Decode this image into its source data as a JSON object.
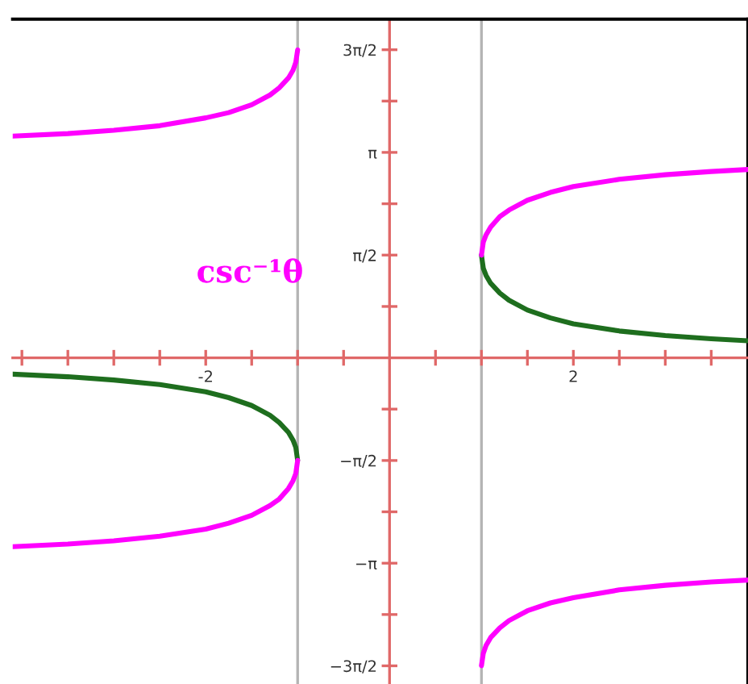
{
  "chart_data": {
    "type": "line",
    "marker": "none",
    "line_style": "solid",
    "grid": false,
    "legend": false,
    "xlim": [
      -4.1,
      3.9
    ],
    "ylim": [
      -4.99,
      5.18
    ],
    "xticks": [
      {
        "value": -4,
        "label": null
      },
      {
        "value": -3.5,
        "label": null
      },
      {
        "value": -3,
        "label": null
      },
      {
        "value": -2.5,
        "label": null
      },
      {
        "value": -2,
        "label": "-2"
      },
      {
        "value": -1.5,
        "label": null
      },
      {
        "value": -1,
        "label": null
      },
      {
        "value": -0.5,
        "label": null
      },
      {
        "value": 0.5,
        "label": null
      },
      {
        "value": 1,
        "label": null
      },
      {
        "value": 1.5,
        "label": null
      },
      {
        "value": 2,
        "label": "2"
      },
      {
        "value": 2.5,
        "label": null
      },
      {
        "value": 3,
        "label": null
      },
      {
        "value": 3.5,
        "label": null
      }
    ],
    "yticks": [
      {
        "value": -4.712,
        "label": "−3π/2"
      },
      {
        "value": -3.927,
        "label": null
      },
      {
        "value": -3.142,
        "label": "−π"
      },
      {
        "value": -2.356,
        "label": null
      },
      {
        "value": -1.571,
        "label": "−π/2"
      },
      {
        "value": -0.785,
        "label": null
      },
      {
        "value": 0.785,
        "label": null
      },
      {
        "value": 1.571,
        "label": "π/2"
      },
      {
        "value": 2.356,
        "label": null
      },
      {
        "value": 3.142,
        "label": "π"
      },
      {
        "value": 3.927,
        "label": null
      },
      {
        "value": 4.712,
        "label": "3π/2"
      }
    ],
    "ref_lines": [
      {
        "axis": "x",
        "value": -1,
        "color": "#b4b4b4"
      },
      {
        "axis": "x",
        "value": 1,
        "color": "#b4b4b4"
      }
    ],
    "annotations": [
      "csc⁻¹θ"
    ],
    "series": [
      {
        "color": "#1e6e1e",
        "x": [
          1,
          1.02,
          1.05,
          1.1,
          1.2,
          1.3,
          1.5,
          1.75,
          2,
          2.5,
          3,
          3.5,
          3.9
        ],
        "values": [
          1.57,
          1.37,
          1.26,
          1.14,
          0.99,
          0.88,
          0.73,
          0.61,
          0.52,
          0.41,
          0.34,
          0.29,
          0.26
        ]
      },
      {
        "color": "#ff00ff",
        "x": [
          1,
          1.02,
          1.05,
          1.1,
          1.2,
          1.3,
          1.5,
          1.75,
          2,
          2.5,
          3,
          3.5,
          3.9
        ],
        "values": [
          1.57,
          1.77,
          1.88,
          2.0,
          2.16,
          2.26,
          2.41,
          2.53,
          2.62,
          2.73,
          2.8,
          2.85,
          2.88
        ]
      },
      {
        "color": "#ff00ff",
        "x": [
          1,
          1.02,
          1.05,
          1.1,
          1.2,
          1.3,
          1.5,
          1.75,
          2,
          2.5,
          3,
          3.5,
          3.9
        ],
        "values": [
          -4.71,
          -4.52,
          -4.4,
          -4.28,
          -4.13,
          -4.02,
          -3.87,
          -3.75,
          -3.67,
          -3.55,
          -3.48,
          -3.43,
          -3.4
        ]
      },
      {
        "color": "#1e6e1e",
        "x": [
          -4.1,
          -3.5,
          -3,
          -2.5,
          -2,
          -1.75,
          -1.5,
          -1.3,
          -1.2,
          -1.1,
          -1.05,
          -1.02,
          -1
        ],
        "values": [
          -0.25,
          -0.29,
          -0.34,
          -0.41,
          -0.52,
          -0.61,
          -0.73,
          -0.88,
          -0.99,
          -1.14,
          -1.26,
          -1.37,
          -1.57
        ]
      },
      {
        "color": "#ff00ff",
        "x": [
          -4.1,
          -3.5,
          -3,
          -2.5,
          -2,
          -1.75,
          -1.5,
          -1.3,
          -1.2,
          -1.1,
          -1.05,
          -1.02,
          -1
        ],
        "values": [
          3.39,
          3.43,
          3.48,
          3.55,
          3.67,
          3.75,
          3.87,
          4.02,
          4.13,
          4.28,
          4.4,
          4.52,
          4.71
        ]
      },
      {
        "color": "#ff00ff",
        "x": [
          -4.1,
          -3.5,
          -3,
          -2.5,
          -2,
          -1.75,
          -1.5,
          -1.3,
          -1.2,
          -1.1,
          -1.05,
          -1.02,
          -1
        ],
        "values": [
          -2.89,
          -2.85,
          -2.8,
          -2.73,
          -2.62,
          -2.53,
          -2.41,
          -2.26,
          -2.16,
          -2.0,
          -1.88,
          -1.77,
          -1.57
        ]
      }
    ]
  }
}
